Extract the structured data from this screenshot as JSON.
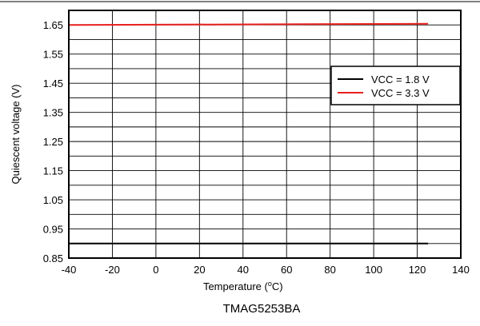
{
  "chart_data": {
    "type": "line",
    "xlabel_prefix": "Temperature (",
    "xlabel_sup": "o",
    "xlabel_suffix": "C)",
    "ylabel": "Quiescent voltage (V)",
    "caption": "TMAG5253BA",
    "xlim": [
      -40,
      140
    ],
    "ylim": [
      0.85,
      1.7
    ],
    "x_ticks": [
      -40,
      -20,
      0,
      20,
      40,
      60,
      80,
      100,
      120,
      140
    ],
    "y_ticks": [
      0.85,
      0.95,
      1.05,
      1.15,
      1.25,
      1.35,
      1.45,
      1.55,
      1.65
    ],
    "y_tick_labels": [
      "0.85",
      "0.95",
      "1.05",
      "1.15",
      "1.25",
      "1.35",
      "1.45",
      "1.55",
      "1.65"
    ],
    "grid": true,
    "legend_position": "right-middle",
    "series": [
      {
        "name": "VCC = 1.8 V",
        "color": "#000000",
        "x": [
          -40,
          125
        ],
        "y": [
          0.9,
          0.9
        ]
      },
      {
        "name": "VCC = 3.3 V",
        "color": "#e8201e",
        "x": [
          -40,
          125
        ],
        "y": [
          1.65,
          1.654
        ]
      }
    ]
  }
}
